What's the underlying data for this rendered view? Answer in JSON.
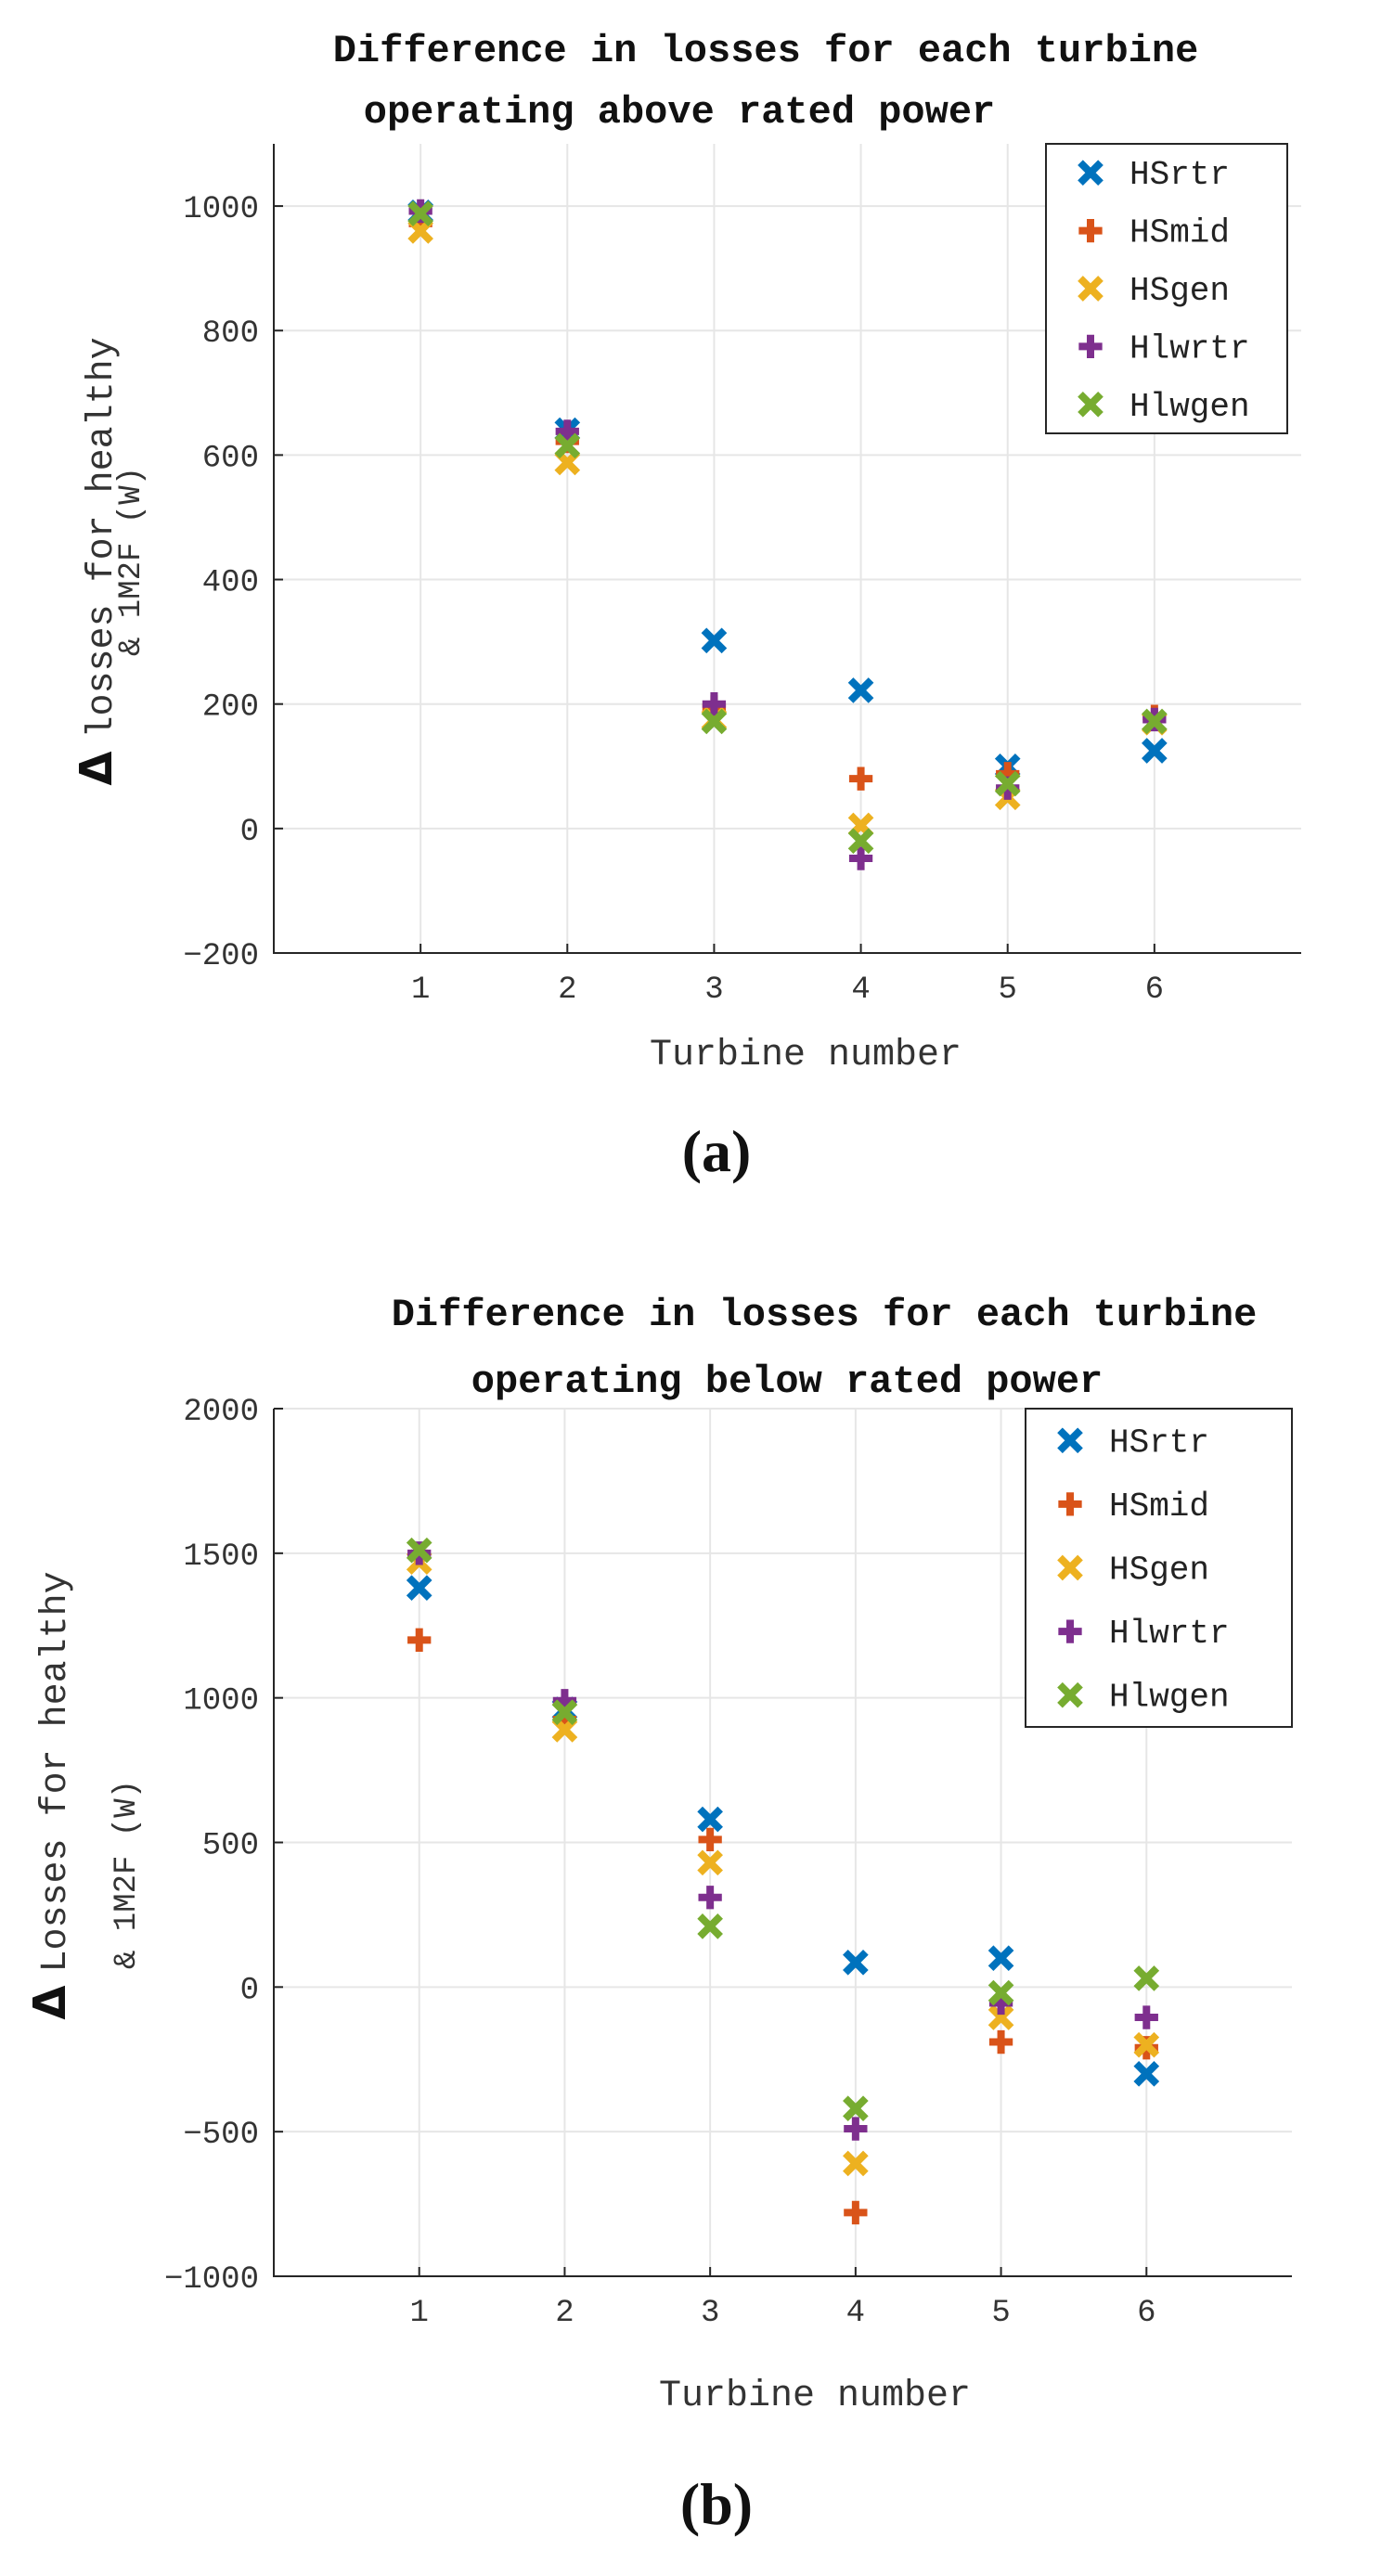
{
  "chart_data": [
    {
      "type": "scatter",
      "panel_label": "(a)",
      "title_line1": "Difference in losses for each turbine",
      "title_line2": "operating above rated power",
      "xlabel": "Turbine number",
      "ylabel_symbol": "Δ",
      "ylabel_line1": "losses for healthy",
      "ylabel_line2": "& 1M2F (W)",
      "x": [
        1,
        2,
        3,
        4,
        5,
        6
      ],
      "xlim": [
        0,
        7
      ],
      "ylim": [
        -200,
        1100
      ],
      "yticks": [
        -200,
        0,
        200,
        400,
        600,
        800,
        1000
      ],
      "xticks": [
        1,
        2,
        3,
        4,
        5,
        6
      ],
      "grid": true,
      "legend_position": "top-right",
      "series": [
        {
          "name": "HSrtr",
          "marker": "x",
          "color": "#0072BD",
          "values": [
            990,
            640,
            302,
            222,
            100,
            125
          ]
        },
        {
          "name": "HSmid",
          "marker": "plus",
          "color": "#D95319",
          "values": [
            972,
            622,
            195,
            80,
            88,
            180
          ]
        },
        {
          "name": "HSgen",
          "marker": "x",
          "color": "#EDB120",
          "values": [
            960,
            588,
            175,
            5,
            50,
            170
          ]
        },
        {
          "name": "Hlwrtr",
          "marker": "plus",
          "color": "#7E2F8E",
          "values": [
            992,
            638,
            200,
            -48,
            65,
            175
          ]
        },
        {
          "name": "Hlwgen",
          "marker": "x",
          "color": "#77AC30",
          "values": [
            988,
            615,
            172,
            -20,
            72,
            172
          ]
        }
      ]
    },
    {
      "type": "scatter",
      "panel_label": "(b)",
      "title_line1": "Difference in losses for each turbine",
      "title_line2": "operating below rated power",
      "xlabel": "Turbine number",
      "ylabel_symbol": "Δ",
      "ylabel_line1": "Losses for healthy",
      "ylabel_line2": "& 1M2F (W)",
      "x": [
        1,
        2,
        3,
        4,
        5,
        6
      ],
      "xlim": [
        0,
        7
      ],
      "ylim": [
        -1000,
        2000
      ],
      "yticks": [
        -1000,
        -500,
        0,
        500,
        1000,
        1500,
        2000
      ],
      "xticks": [
        1,
        2,
        3,
        4,
        5,
        6
      ],
      "grid": true,
      "legend_position": "top-right",
      "series": [
        {
          "name": "HSrtr",
          "marker": "x",
          "color": "#0072BD",
          "values": [
            1380,
            960,
            580,
            85,
            100,
            -300
          ]
        },
        {
          "name": "HSmid",
          "marker": "plus",
          "color": "#D95319",
          "values": [
            1200,
            925,
            510,
            -780,
            -190,
            -210
          ]
        },
        {
          "name": "HSgen",
          "marker": "x",
          "color": "#EDB120",
          "values": [
            1470,
            890,
            430,
            -610,
            -105,
            -200
          ]
        },
        {
          "name": "Hlwrtr",
          "marker": "plus",
          "color": "#7E2F8E",
          "values": [
            1500,
            990,
            310,
            -490,
            -55,
            -105
          ]
        },
        {
          "name": "Hlwgen",
          "marker": "x",
          "color": "#77AC30",
          "values": [
            1510,
            950,
            210,
            -420,
            -20,
            30
          ]
        }
      ]
    }
  ]
}
